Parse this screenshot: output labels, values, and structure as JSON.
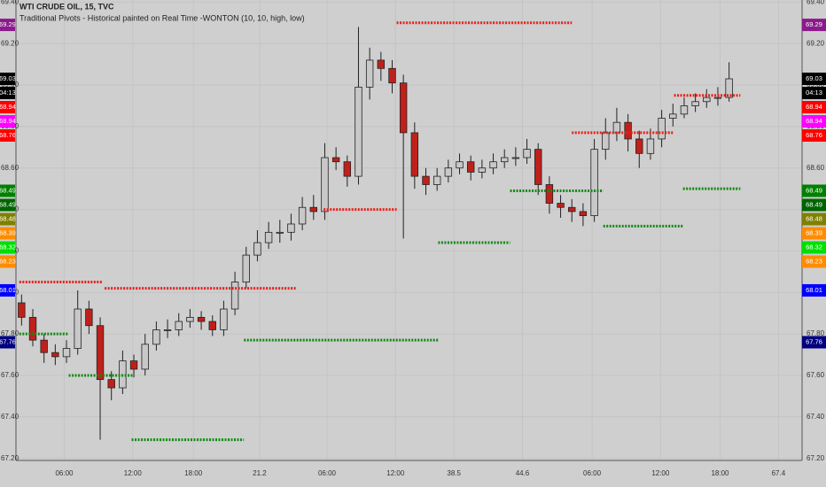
{
  "chart_data": {
    "type": "candlestick",
    "title": "WTI CRUDE OIL, 15, TVC",
    "subtitle": "Traditional Pivots - Historical painted on Real Time -WONTON (10, 10, high, low)",
    "up_color": "#c8c8c8",
    "down_color": "#c0201b",
    "wick_color": "#222222",
    "open": [
      67.95,
      67.88,
      67.77,
      67.71,
      67.69,
      67.73,
      67.92,
      67.84,
      67.58,
      67.54,
      67.67,
      67.63,
      67.75,
      67.82,
      67.82,
      67.86,
      67.88,
      67.86,
      67.82,
      67.92,
      68.05,
      68.18,
      68.24,
      68.29,
      68.29,
      68.33,
      68.41,
      68.39,
      68.65,
      68.63,
      68.56,
      68.99,
      69.12,
      69.08,
      69.01,
      68.77,
      68.56,
      68.52,
      68.56,
      68.6,
      68.63,
      68.58,
      68.6,
      68.63,
      68.65,
      68.65,
      68.69,
      68.52,
      68.43,
      68.41,
      68.39,
      68.37,
      68.69,
      68.77,
      68.82,
      68.74,
      68.67,
      68.74,
      68.84,
      68.86,
      68.9,
      68.92,
      68.94,
      68.94
    ],
    "high": [
      67.99,
      67.92,
      67.8,
      67.75,
      67.77,
      68.01,
      67.96,
      67.88,
      67.62,
      67.72,
      67.7,
      67.8,
      67.86,
      67.87,
      67.9,
      67.92,
      67.91,
      67.89,
      67.96,
      68.1,
      68.22,
      68.3,
      68.34,
      68.35,
      68.38,
      68.46,
      68.47,
      68.72,
      68.7,
      68.66,
      69.28,
      69.18,
      69.16,
      69.12,
      69.05,
      68.82,
      68.6,
      68.6,
      68.64,
      68.67,
      68.66,
      68.64,
      68.67,
      68.69,
      68.7,
      68.74,
      68.72,
      68.56,
      68.47,
      68.45,
      68.43,
      68.74,
      68.84,
      68.89,
      68.86,
      68.78,
      68.79,
      68.88,
      68.91,
      68.94,
      68.96,
      68.98,
      68.99,
      69.11
    ],
    "low": [
      67.84,
      67.74,
      67.66,
      67.65,
      67.66,
      67.7,
      67.8,
      67.29,
      67.48,
      67.51,
      67.59,
      67.6,
      67.72,
      67.78,
      67.79,
      67.83,
      67.82,
      67.79,
      67.79,
      67.89,
      68.02,
      68.15,
      68.21,
      68.24,
      68.25,
      68.3,
      68.35,
      68.35,
      68.59,
      68.51,
      68.52,
      68.93,
      69.02,
      68.96,
      68.26,
      68.5,
      68.47,
      68.49,
      68.53,
      68.57,
      68.54,
      68.55,
      68.57,
      68.6,
      68.61,
      68.62,
      68.47,
      68.38,
      68.36,
      68.34,
      68.32,
      68.34,
      68.64,
      68.73,
      68.68,
      68.6,
      68.64,
      68.7,
      68.8,
      68.84,
      68.87,
      68.89,
      68.9,
      68.92
    ],
    "close": [
      67.88,
      67.77,
      67.71,
      67.69,
      67.73,
      67.92,
      67.84,
      67.58,
      67.54,
      67.67,
      67.63,
      67.75,
      67.82,
      67.82,
      67.86,
      67.88,
      67.86,
      67.82,
      67.92,
      68.05,
      68.18,
      68.24,
      68.29,
      68.29,
      68.33,
      68.41,
      68.39,
      68.65,
      68.63,
      68.56,
      68.99,
      69.12,
      69.08,
      69.01,
      68.77,
      68.56,
      68.52,
      68.56,
      68.6,
      68.63,
      68.58,
      68.6,
      68.63,
      68.65,
      68.65,
      68.69,
      68.52,
      68.43,
      68.41,
      68.39,
      68.37,
      68.69,
      68.77,
      68.82,
      68.74,
      68.67,
      68.74,
      68.84,
      68.86,
      68.9,
      68.92,
      68.94,
      68.94,
      69.03
    ],
    "pivots": [
      {
        "start": -0.2,
        "end": 7.2,
        "value": 68.05,
        "color": "#e8201a"
      },
      {
        "start": 7.4,
        "end": 24.5,
        "value": 68.02,
        "color": "#e8201a"
      },
      {
        "start": 26.9,
        "end": 33.4,
        "value": 68.4,
        "color": "#e8201a"
      },
      {
        "start": 33.4,
        "end": 49,
        "value": 69.3,
        "color": "#e8201a"
      },
      {
        "start": 49,
        "end": 58.1,
        "value": 68.77,
        "color": "#e8201a"
      },
      {
        "start": 58.1,
        "end": 64,
        "value": 68.95,
        "color": "#e8201a"
      },
      {
        "start": -0.2,
        "end": 4.2,
        "value": 67.8,
        "color": "#0f8a12"
      },
      {
        "start": 4.2,
        "end": 9.9,
        "value": 67.6,
        "color": "#0f8a12"
      },
      {
        "start": 9.8,
        "end": 19.8,
        "value": 67.29,
        "color": "#0f8a12"
      },
      {
        "start": 19.8,
        "end": 37.1,
        "value": 67.77,
        "color": "#0f8a12"
      },
      {
        "start": 37.1,
        "end": 43.5,
        "value": 68.24,
        "color": "#0f8a12"
      },
      {
        "start": 43.5,
        "end": 51.8,
        "value": 68.49,
        "color": "#0f8a12"
      },
      {
        "start": 51.8,
        "end": 58.9,
        "value": 68.32,
        "color": "#0f8a12"
      },
      {
        "start": 58.9,
        "end": 64,
        "value": 68.5,
        "color": "#0f8a12"
      }
    ],
    "badges": [
      {
        "value": 69.29,
        "label": "69.29",
        "color": "#8b1a8b"
      },
      {
        "value": 69.03,
        "label": "69.03",
        "color": "#000000"
      },
      {
        "value": 69.03,
        "label": "04:13",
        "color": "#000000"
      },
      {
        "value": 68.94,
        "label": "68.94",
        "color": "#ff0000"
      },
      {
        "value": 68.94,
        "label": "68.94",
        "color": "#ff00ff"
      },
      {
        "value": 68.76,
        "label": "68.76",
        "color": "#ff0000"
      },
      {
        "value": 68.49,
        "label": "68.49",
        "color": "#008000"
      },
      {
        "value": 68.49,
        "label": "68.49",
        "color": "#006400"
      },
      {
        "value": 68.48,
        "label": "68.48",
        "color": "#808000"
      },
      {
        "value": 68.39,
        "label": "68.39",
        "color": "#ff8c00"
      },
      {
        "value": 68.32,
        "label": "68.32",
        "color": "#00e000"
      },
      {
        "value": 68.23,
        "label": "68.23",
        "color": "#ff8c00"
      },
      {
        "value": 68.01,
        "label": "68.01",
        "color": "#0000ff"
      },
      {
        "value": 67.76,
        "label": "67.76",
        "color": "#000080"
      }
    ],
    "xlim": [
      -0.5,
      69.5
    ],
    "xticks": [
      {
        "value": 3.8,
        "label": "06:00"
      },
      {
        "value": 9.9,
        "label": "12:00"
      },
      {
        "value": 15.3,
        "label": "18:00"
      },
      21.2,
      {
        "value": 27.2,
        "label": "06:00"
      },
      {
        "value": 33.3,
        "label": "12:00"
      },
      38.5,
      44.6,
      {
        "value": 50.8,
        "label": "06:00"
      },
      {
        "value": 56.9,
        "label": "12:00"
      },
      {
        "value": 62.2,
        "label": "18:00"
      },
      67.4
    ],
    "xtick_labels_override": null,
    "ylim": [
      67.19,
      69.41
    ],
    "yticks": [
      {
        "value": 67.2,
        "label": "67.20"
      },
      {
        "value": 67.4,
        "label": "67.40"
      },
      {
        "value": 67.6,
        "label": "67.60"
      },
      {
        "value": 67.8,
        "label": "67.80"
      },
      {
        "value": 68,
        "label": "68.00"
      },
      {
        "value": 68.2,
        "label": "68.20"
      },
      {
        "value": 68.4,
        "label": "68.40"
      },
      {
        "value": 68.6,
        "label": "68.60"
      },
      {
        "value": 68.8,
        "label": "68.80"
      },
      {
        "value": 69,
        "label": "69.00"
      },
      {
        "value": 69.2,
        "label": "69.20"
      },
      {
        "value": 69.4,
        "label": "69.40"
      }
    ],
    "grid": true
  }
}
